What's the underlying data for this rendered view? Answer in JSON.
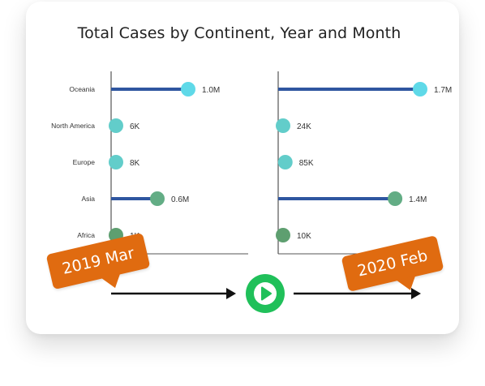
{
  "chart_data": {
    "type": "lollipop",
    "title": "Total Cases by Continent, Year and Month",
    "categories": [
      "Oceania",
      "North America",
      "Europe",
      "Asia",
      "Africa"
    ],
    "panels": [
      {
        "name": "2019 Mar",
        "values": [
          1000000,
          6000,
          8000,
          600000,
          1000
        ],
        "labels": [
          "1.0M",
          "6K",
          "8K",
          "0.6M",
          "1K"
        ]
      },
      {
        "name": "2020 Feb",
        "values": [
          1700000,
          24000,
          85000,
          1400000,
          10000
        ],
        "labels": [
          "1.7M",
          "24K",
          "85K",
          "1.4M",
          "10K"
        ]
      }
    ],
    "colors": {
      "stem": "#2f56a0",
      "dots": [
        "#5fd9e8",
        "#62cdca",
        "#62cdca",
        "#63ad85",
        "#5e9f70"
      ]
    }
  },
  "timeline": {
    "start_label": "2019 Mar",
    "end_label": "2020 Feb",
    "play_icon": "play-icon",
    "play_color": "#20c05a",
    "callout_color": "#e06b10"
  }
}
